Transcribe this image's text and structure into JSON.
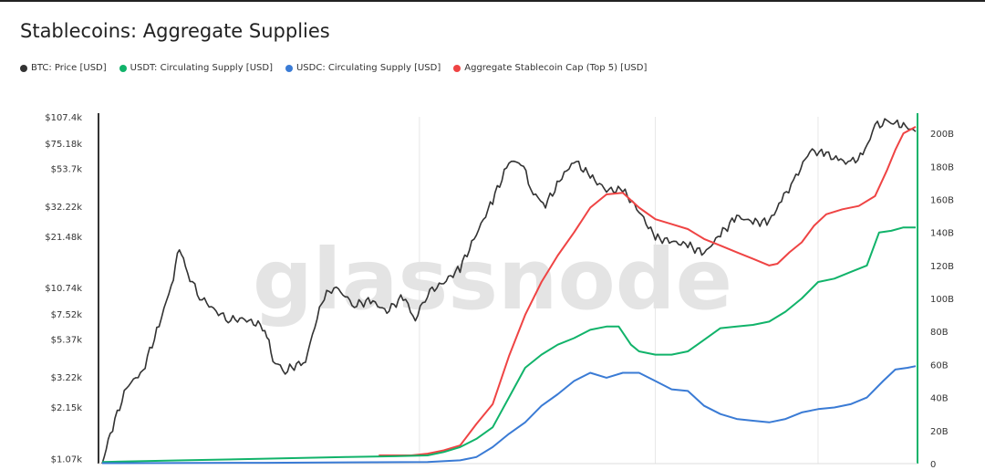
{
  "colors": {
    "btc": "#333333",
    "usdt": "#11b36a",
    "usdc": "#3a7bd5",
    "aggregate": "#ef4444",
    "right_axis": "#11b36a",
    "grid": "#e6e6e6"
  },
  "chart_data": {
    "type": "line",
    "title": "Stablecoins: Aggregate Supplies",
    "watermark": "glassnode",
    "legend_position": "top-left",
    "grid": true,
    "x_range": [
      0,
      1
    ],
    "y_left": {
      "scale": "log",
      "range": [
        1000,
        107400
      ],
      "ticks": [
        {
          "value": 1070,
          "label": "$1.07k"
        },
        {
          "value": 2150,
          "label": "$2.15k"
        },
        {
          "value": 3220,
          "label": "$3.22k"
        },
        {
          "value": 5370,
          "label": "$5.37k"
        },
        {
          "value": 7520,
          "label": "$7.52k"
        },
        {
          "value": 10740,
          "label": "$10.74k"
        },
        {
          "value": 21480,
          "label": "$21.48k"
        },
        {
          "value": 32220,
          "label": "$32.22k"
        },
        {
          "value": 53700,
          "label": "$53.7k"
        },
        {
          "value": 75180,
          "label": "$75.18k"
        },
        {
          "value": 107400,
          "label": "$107.4k"
        }
      ]
    },
    "y_right": {
      "scale": "linear",
      "range": [
        0,
        210
      ],
      "ticks": [
        {
          "value": 0,
          "label": "0"
        },
        {
          "value": 20,
          "label": "20B"
        },
        {
          "value": 40,
          "label": "40B"
        },
        {
          "value": 60,
          "label": "60B"
        },
        {
          "value": 80,
          "label": "80B"
        },
        {
          "value": 100,
          "label": "100B"
        },
        {
          "value": 120,
          "label": "120B"
        },
        {
          "value": 140,
          "label": "140B"
        },
        {
          "value": 160,
          "label": "160B"
        },
        {
          "value": 180,
          "label": "180B"
        },
        {
          "value": 200,
          "label": "200B"
        }
      ]
    },
    "series": [
      {
        "key": "btc",
        "name": "BTC: Price [USD]",
        "axis": "left",
        "points": [
          [
            0,
            1000
          ],
          [
            0.01,
            1500
          ],
          [
            0.03,
            2800
          ],
          [
            0.05,
            3500
          ],
          [
            0.07,
            6500
          ],
          [
            0.085,
            11000
          ],
          [
            0.095,
            18500
          ],
          [
            0.105,
            13000
          ],
          [
            0.12,
            9500
          ],
          [
            0.14,
            7800
          ],
          [
            0.155,
            7000
          ],
          [
            0.175,
            7000
          ],
          [
            0.2,
            6300
          ],
          [
            0.21,
            4000
          ],
          [
            0.225,
            3500
          ],
          [
            0.25,
            4000
          ],
          [
            0.27,
            9000
          ],
          [
            0.285,
            11000
          ],
          [
            0.31,
            8500
          ],
          [
            0.33,
            9000
          ],
          [
            0.35,
            7800
          ],
          [
            0.37,
            9500
          ],
          [
            0.385,
            7000
          ],
          [
            0.4,
            10000
          ],
          [
            0.42,
            11500
          ],
          [
            0.44,
            14000
          ],
          [
            0.46,
            22000
          ],
          [
            0.48,
            35000
          ],
          [
            0.5,
            58000
          ],
          [
            0.515,
            59000
          ],
          [
            0.53,
            38000
          ],
          [
            0.545,
            33000
          ],
          [
            0.565,
            47000
          ],
          [
            0.58,
            60000
          ],
          [
            0.6,
            48000
          ],
          [
            0.62,
            40000
          ],
          [
            0.64,
            40000
          ],
          [
            0.66,
            30000
          ],
          [
            0.68,
            21000
          ],
          [
            0.7,
            20000
          ],
          [
            0.72,
            19000
          ],
          [
            0.74,
            17000
          ],
          [
            0.76,
            22000
          ],
          [
            0.78,
            28000
          ],
          [
            0.8,
            26000
          ],
          [
            0.82,
            26000
          ],
          [
            0.835,
            35000
          ],
          [
            0.85,
            45000
          ],
          [
            0.87,
            68000
          ],
          [
            0.89,
            65000
          ],
          [
            0.905,
            60000
          ],
          [
            0.92,
            58000
          ],
          [
            0.935,
            64000
          ],
          [
            0.95,
            95000
          ],
          [
            0.965,
            100000
          ],
          [
            0.975,
            98000
          ],
          [
            0.985,
            96000
          ],
          [
            1.0,
            88000
          ]
        ]
      },
      {
        "key": "aggregate",
        "name": "Aggregate Stablecoin Cap (Top 5) [USD]",
        "axis": "right",
        "points": [
          [
            0.34,
            5
          ],
          [
            0.38,
            5
          ],
          [
            0.4,
            6
          ],
          [
            0.42,
            8
          ],
          [
            0.44,
            11
          ],
          [
            0.46,
            24
          ],
          [
            0.48,
            36
          ],
          [
            0.5,
            65
          ],
          [
            0.52,
            90
          ],
          [
            0.54,
            110
          ],
          [
            0.56,
            126
          ],
          [
            0.58,
            140
          ],
          [
            0.6,
            155
          ],
          [
            0.62,
            163
          ],
          [
            0.64,
            164
          ],
          [
            0.66,
            155
          ],
          [
            0.68,
            148
          ],
          [
            0.7,
            145
          ],
          [
            0.72,
            142
          ],
          [
            0.74,
            136
          ],
          [
            0.76,
            132
          ],
          [
            0.78,
            128
          ],
          [
            0.8,
            124
          ],
          [
            0.82,
            120
          ],
          [
            0.83,
            121
          ],
          [
            0.845,
            128
          ],
          [
            0.86,
            134
          ],
          [
            0.875,
            144
          ],
          [
            0.89,
            151
          ],
          [
            0.91,
            154
          ],
          [
            0.93,
            156
          ],
          [
            0.95,
            162
          ],
          [
            0.965,
            178
          ],
          [
            0.975,
            190
          ],
          [
            0.985,
            200
          ],
          [
            1.0,
            204
          ]
        ]
      },
      {
        "key": "usdt",
        "name": "USDT: Circulating Supply [USD]",
        "axis": "right",
        "points": [
          [
            0,
            1
          ],
          [
            0.1,
            2
          ],
          [
            0.2,
            3
          ],
          [
            0.3,
            4
          ],
          [
            0.36,
            4.5
          ],
          [
            0.4,
            5
          ],
          [
            0.42,
            7
          ],
          [
            0.44,
            10
          ],
          [
            0.46,
            15
          ],
          [
            0.48,
            22
          ],
          [
            0.5,
            40
          ],
          [
            0.52,
            58
          ],
          [
            0.54,
            66
          ],
          [
            0.56,
            72
          ],
          [
            0.58,
            76
          ],
          [
            0.6,
            81
          ],
          [
            0.62,
            83
          ],
          [
            0.635,
            83
          ],
          [
            0.65,
            72
          ],
          [
            0.66,
            68
          ],
          [
            0.68,
            66
          ],
          [
            0.7,
            66
          ],
          [
            0.72,
            68
          ],
          [
            0.74,
            75
          ],
          [
            0.76,
            82
          ],
          [
            0.78,
            83
          ],
          [
            0.8,
            84
          ],
          [
            0.82,
            86
          ],
          [
            0.84,
            92
          ],
          [
            0.86,
            100
          ],
          [
            0.88,
            110
          ],
          [
            0.9,
            112
          ],
          [
            0.92,
            116
          ],
          [
            0.94,
            120
          ],
          [
            0.955,
            140
          ],
          [
            0.97,
            141
          ],
          [
            0.985,
            143
          ],
          [
            1.0,
            143
          ]
        ]
      },
      {
        "key": "usdc",
        "name": "USDC: Circulating Supply [USD]",
        "axis": "right",
        "points": [
          [
            0,
            0.3
          ],
          [
            0.2,
            0.5
          ],
          [
            0.4,
            1
          ],
          [
            0.44,
            2
          ],
          [
            0.46,
            4
          ],
          [
            0.48,
            10
          ],
          [
            0.5,
            18
          ],
          [
            0.52,
            25
          ],
          [
            0.54,
            35
          ],
          [
            0.56,
            42
          ],
          [
            0.58,
            50
          ],
          [
            0.6,
            55
          ],
          [
            0.62,
            52
          ],
          [
            0.64,
            55
          ],
          [
            0.66,
            55
          ],
          [
            0.68,
            50
          ],
          [
            0.7,
            45
          ],
          [
            0.72,
            44
          ],
          [
            0.74,
            35
          ],
          [
            0.76,
            30
          ],
          [
            0.78,
            27
          ],
          [
            0.8,
            26
          ],
          [
            0.82,
            25
          ],
          [
            0.84,
            27
          ],
          [
            0.86,
            31
          ],
          [
            0.88,
            33
          ],
          [
            0.9,
            34
          ],
          [
            0.92,
            36
          ],
          [
            0.94,
            40
          ],
          [
            0.96,
            50
          ],
          [
            0.975,
            57
          ],
          [
            0.99,
            58
          ],
          [
            1.0,
            59
          ]
        ]
      }
    ]
  }
}
